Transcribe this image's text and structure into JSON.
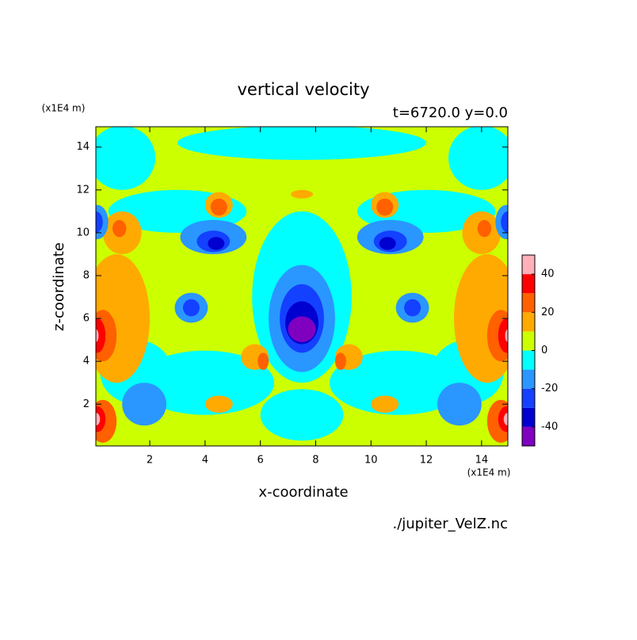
{
  "chart_data": {
    "type": "contour",
    "title": "vertical velocity",
    "subtitle": "t=6720.0 y=0.0",
    "xlabel": "x-coordinate",
    "ylabel": "z-coordinate",
    "x_unit": "(x1E4 m)",
    "y_unit": "(x1E4 m)",
    "source": "./jupiter_VelZ.nc",
    "xlim": [
      0.05,
      14.95
    ],
    "ylim": [
      0.05,
      14.95
    ],
    "xticks": [
      2,
      4,
      6,
      8,
      10,
      12,
      14
    ],
    "yticks": [
      2,
      4,
      6,
      8,
      10,
      12,
      14
    ],
    "levels": [
      -50,
      -40,
      -30,
      -20,
      -10,
      0,
      10,
      20,
      30,
      40,
      50
    ],
    "colors": [
      "#8000c0",
      "#0000d0",
      "#1440ff",
      "#2a96ff",
      "#00ffff",
      "#ccff00",
      "#ffaa00",
      "#ff6000",
      "#ff0000",
      "#ffb0b8"
    ],
    "cbar_ticks": [
      -40,
      -20,
      0,
      20,
      40
    ],
    "background": 5,
    "features": {
      "x": [
        7.5,
        1,
        14,
        3,
        12,
        7.5,
        4,
        11,
        7.5,
        1.5,
        13.5,
        0.8,
        14.2,
        1,
        14,
        5.8,
        9.2,
        4.5,
        10.5,
        4.5,
        10.5,
        7.5,
        4.3,
        10.7,
        3.5,
        11.5,
        7.5,
        1.8,
        13.2,
        0.1,
        14.9,
        4.3,
        10.7,
        3.5,
        11.5,
        7.5,
        0.05,
        14.95,
        4.4,
        10.6,
        7.5,
        7.5,
        0.3,
        14.7,
        0.3,
        14.7,
        6.1,
        8.9,
        4.5,
        10.5,
        0.9,
        14.1,
        0.1,
        14.9,
        0.1,
        14.9,
        0.05,
        14.95,
        0.05,
        14.95
      ],
      "z": [
        14.2,
        13.5,
        13.5,
        11,
        11,
        7,
        3,
        3,
        1.5,
        3.5,
        3.5,
        6,
        6,
        10,
        10,
        4.2,
        4.2,
        2,
        2,
        11.3,
        11.3,
        11.8,
        9.8,
        9.8,
        6.5,
        6.5,
        6,
        2,
        2,
        10.5,
        10.5,
        9.6,
        9.6,
        6.5,
        6.5,
        6,
        10.5,
        10.5,
        9.5,
        9.5,
        5.8,
        5.5,
        5.2,
        5.2,
        1.2,
        1.2,
        4,
        4,
        11.2,
        11.2,
        10.2,
        10.2,
        5.2,
        5.2,
        1.3,
        1.3,
        1.3,
        1.3,
        5.2,
        5.2
      ],
      "rx": [
        4.5,
        1.2,
        1.2,
        2.5,
        2.5,
        1.8,
        2.5,
        2.5,
        1.5,
        1.3,
        1.3,
        1.2,
        1.2,
        0.7,
        0.7,
        0.5,
        0.5,
        0.5,
        0.5,
        0.5,
        0.5,
        0.4,
        1.2,
        1.2,
        0.6,
        0.6,
        1.2,
        0.8,
        0.8,
        0.4,
        0.4,
        0.6,
        0.6,
        0.3,
        0.3,
        0.8,
        0.25,
        0.25,
        0.3,
        0.3,
        0.6,
        0.5,
        0.5,
        0.5,
        0.5,
        0.5,
        0.2,
        0.2,
        0.3,
        0.3,
        0.25,
        0.25,
        0.3,
        0.3,
        0.3,
        0.3,
        0.15,
        0.15,
        0.1,
        0.1
      ],
      "rz": [
        0.8,
        1.5,
        1.5,
        1,
        1,
        4,
        1.5,
        1.5,
        1.2,
        1.5,
        1.5,
        3,
        3,
        1,
        1,
        0.6,
        0.6,
        0.4,
        0.4,
        0.6,
        0.6,
        0.2,
        0.8,
        0.8,
        0.7,
        0.7,
        2.5,
        1,
        1,
        0.8,
        0.8,
        0.5,
        0.5,
        0.4,
        0.4,
        1.6,
        0.5,
        0.5,
        0.3,
        0.3,
        1,
        0.6,
        1.2,
        1.2,
        1,
        1,
        0.4,
        0.4,
        0.4,
        0.4,
        0.4,
        0.4,
        0.8,
        0.8,
        0.6,
        0.6,
        0.3,
        0.3,
        0.3,
        0.3
      ],
      "values": [
        -5,
        -5,
        -5,
        -5,
        -5,
        -5,
        -5,
        -5,
        -5,
        -5,
        -5,
        15,
        15,
        15,
        15,
        15,
        15,
        15,
        15,
        15,
        15,
        15,
        -15,
        -15,
        -15,
        -15,
        -15,
        -15,
        -15,
        -15,
        -15,
        -25,
        -25,
        -25,
        -25,
        -25,
        -25,
        -25,
        -35,
        -35,
        -35,
        -45,
        25,
        25,
        25,
        25,
        25,
        25,
        25,
        25,
        25,
        25,
        35,
        35,
        35,
        35,
        45,
        45,
        45,
        45
      ]
    }
  }
}
